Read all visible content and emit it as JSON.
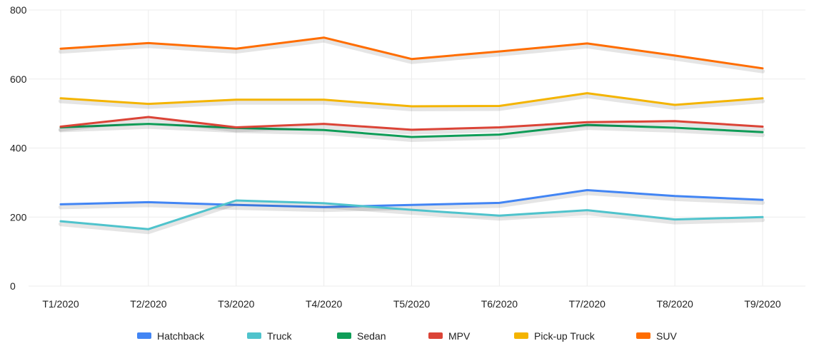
{
  "chart_data": {
    "type": "line",
    "title": "",
    "xlabel": "",
    "ylabel": "",
    "categories": [
      "T1/2020",
      "T2/2020",
      "T3/2020",
      "T4/2020",
      "T5/2020",
      "T6/2020",
      "T7/2020",
      "T8/2020",
      "T9/2020"
    ],
    "ylim": [
      0,
      800
    ],
    "yticks": [
      0,
      200,
      400,
      600,
      800
    ],
    "grid": true,
    "legend": "bottom",
    "series": [
      {
        "name": "Hatchback",
        "color": "#4285f4",
        "values": [
          237,
          243,
          235,
          229,
          235,
          241,
          278,
          261,
          250
        ]
      },
      {
        "name": "Truck",
        "color": "#4fc3cc",
        "values": [
          188,
          165,
          248,
          240,
          221,
          204,
          220,
          193,
          200
        ]
      },
      {
        "name": "Sedan",
        "color": "#0f9d58",
        "values": [
          460,
          470,
          458,
          452,
          432,
          439,
          467,
          459,
          446
        ]
      },
      {
        "name": "MPV",
        "color": "#db4437",
        "values": [
          462,
          490,
          460,
          470,
          453,
          460,
          475,
          478,
          462
        ]
      },
      {
        "name": "Pick-up Truck",
        "color": "#f4b400",
        "values": [
          544,
          528,
          540,
          540,
          521,
          522,
          559,
          525,
          544
        ]
      },
      {
        "name": "SUV",
        "color": "#ff6d00",
        "values": [
          688,
          704,
          688,
          720,
          658,
          680,
          703,
          668,
          631
        ]
      }
    ]
  }
}
